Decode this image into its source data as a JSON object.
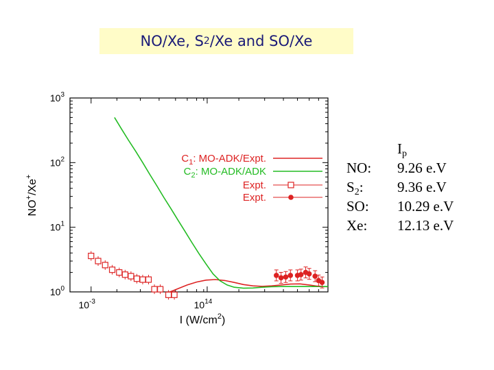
{
  "title": {
    "part1": "NO/Xe, S",
    "sub": "2",
    "part2": "/Xe and SO/Xe"
  },
  "chart_data": {
    "type": "line",
    "xlabel_main": "I (W/cm",
    "xlabel_sup": "2",
    "xlabel_end": ")",
    "ylabel_main": "NO",
    "ylabel_sup1": "+",
    "ylabel_mid": "/Xe",
    "ylabel_sup2": "+",
    "yscale": "log",
    "ylim": [
      1,
      1000
    ],
    "y_ticks": [
      {
        "base": "10",
        "exp": "0"
      },
      {
        "base": "10",
        "exp": "1"
      },
      {
        "base": "10",
        "exp": "2"
      },
      {
        "base": "10",
        "exp": "3"
      }
    ],
    "x_ticks": [
      {
        "base": "10",
        "exp": "-3"
      },
      {
        "base": "10",
        "exp": "14"
      }
    ],
    "legend_position": "top-right",
    "series": [
      {
        "name_main": "C",
        "name_sub": "1",
        "name_rest": ": MO-ADK/Expt.",
        "color": "#dd2222",
        "style": "line",
        "points": [
          [
            0.34,
            0.8
          ],
          [
            0.38,
            0.88
          ],
          [
            0.42,
            0.98
          ],
          [
            0.46,
            1.12
          ],
          [
            0.5,
            1.28
          ],
          [
            0.54,
            1.42
          ],
          [
            0.58,
            1.52
          ],
          [
            0.62,
            1.55
          ],
          [
            0.66,
            1.5
          ],
          [
            0.7,
            1.4
          ],
          [
            0.74,
            1.3
          ],
          [
            0.78,
            1.24
          ],
          [
            0.82,
            1.22
          ],
          [
            0.86,
            1.24
          ],
          [
            0.9,
            1.28
          ],
          [
            0.94,
            1.32
          ],
          [
            0.98,
            1.33
          ],
          [
            1.02,
            1.28
          ],
          [
            1.06,
            1.22
          ],
          [
            1.1,
            1.2
          ]
        ]
      },
      {
        "name_main": "C",
        "name_sub": "2",
        "name_rest": ": MO-ADK/ADK",
        "color": "#22bb22",
        "style": "line",
        "points": [
          [
            0.19,
            500
          ],
          [
            0.22,
            330
          ],
          [
            0.25,
            220
          ],
          [
            0.28,
            150
          ],
          [
            0.31,
            100
          ],
          [
            0.34,
            66
          ],
          [
            0.37,
            44
          ],
          [
            0.4,
            29
          ],
          [
            0.43,
            19.5
          ],
          [
            0.46,
            13
          ],
          [
            0.49,
            8.7
          ],
          [
            0.52,
            5.8
          ],
          [
            0.55,
            3.9
          ],
          [
            0.58,
            2.7
          ],
          [
            0.61,
            1.9
          ],
          [
            0.64,
            1.48
          ],
          [
            0.67,
            1.28
          ],
          [
            0.7,
            1.18
          ],
          [
            0.74,
            1.14
          ],
          [
            0.78,
            1.15
          ],
          [
            0.82,
            1.18
          ],
          [
            0.86,
            1.2
          ],
          [
            0.9,
            1.21
          ],
          [
            0.96,
            1.21
          ],
          [
            1.02,
            1.21
          ],
          [
            1.1,
            1.21
          ]
        ]
      },
      {
        "name_main": "Expt.",
        "name_sub": "",
        "name_rest": "",
        "color": "#dd2222",
        "style": "open-square",
        "points": [
          [
            0.09,
            3.6
          ],
          [
            0.12,
            3.0
          ],
          [
            0.15,
            2.6
          ],
          [
            0.18,
            2.2
          ],
          [
            0.21,
            2.0
          ],
          [
            0.235,
            1.85
          ],
          [
            0.26,
            1.75
          ],
          [
            0.285,
            1.6
          ],
          [
            0.31,
            1.55
          ],
          [
            0.335,
            1.55
          ],
          [
            0.36,
            1.1
          ],
          [
            0.385,
            1.1
          ],
          [
            0.42,
            0.9
          ],
          [
            0.445,
            0.9
          ]
        ]
      },
      {
        "name_main": "Expt.",
        "name_sub": "",
        "name_rest": "",
        "color": "#dd2222",
        "style": "filled-circle",
        "points": [
          [
            0.88,
            1.8
          ],
          [
            0.9,
            1.65
          ],
          [
            0.92,
            1.7
          ],
          [
            0.94,
            1.8
          ],
          [
            0.97,
            1.8
          ],
          [
            0.985,
            1.85
          ],
          [
            1.005,
            2.0
          ],
          [
            1.02,
            1.9
          ],
          [
            1.045,
            1.75
          ],
          [
            1.06,
            1.5
          ],
          [
            1.075,
            1.4
          ]
        ]
      }
    ]
  },
  "ionization": {
    "header_main": "I",
    "header_sub": "p",
    "rows": [
      {
        "mol": "NO:",
        "mol_sub": "",
        "mol_end": "",
        "value": "9.26 e.V"
      },
      {
        "mol": "S",
        "mol_sub": "2",
        "mol_end": ":",
        "value": "9.36 e.V"
      },
      {
        "mol": "SO:",
        "mol_sub": "",
        "mol_end": "",
        "value": "10.29 e.V"
      },
      {
        "mol": "Xe:",
        "mol_sub": "",
        "mol_end": "",
        "value": "12.13 e.V"
      }
    ]
  }
}
